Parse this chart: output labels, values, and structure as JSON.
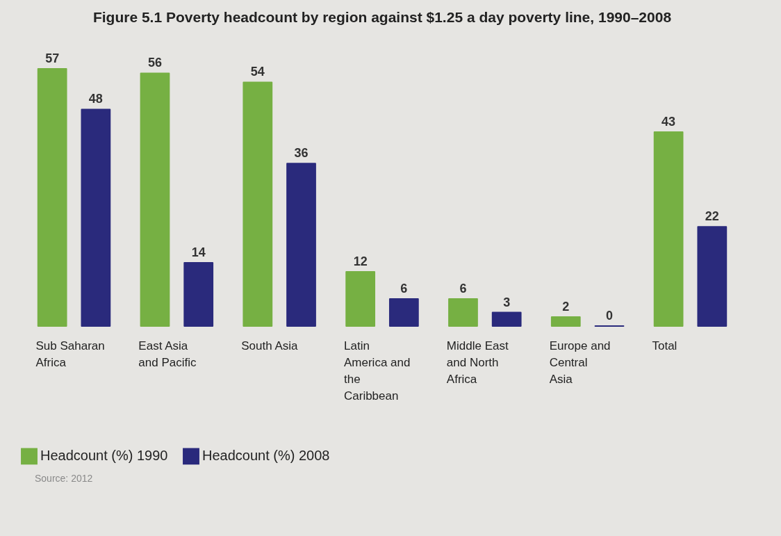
{
  "chart_data": {
    "type": "bar",
    "title": "Figure 5.1 Poverty headcount by region against $1.25 a day poverty line, 1990–2008",
    "categories": [
      "Sub Saharan Africa",
      "East Asia and Pacific",
      "South Asia",
      "Latin America and the Caribbean",
      "Middle East and North Africa",
      "Europe and Central Asia",
      "Total"
    ],
    "series": [
      {
        "name": "Headcount (%) 1990",
        "color": "#76b043",
        "values": [
          57,
          56,
          54,
          12,
          6,
          2,
          43
        ]
      },
      {
        "name": "Headcount (%) 2008",
        "color": "#2a2a7c",
        "values": [
          48,
          14,
          36,
          6,
          3,
          0,
          22
        ]
      }
    ],
    "data_labels": true,
    "legend": "bottom left",
    "grid": false,
    "annotations": [
      "Source: 2012"
    ]
  }
}
